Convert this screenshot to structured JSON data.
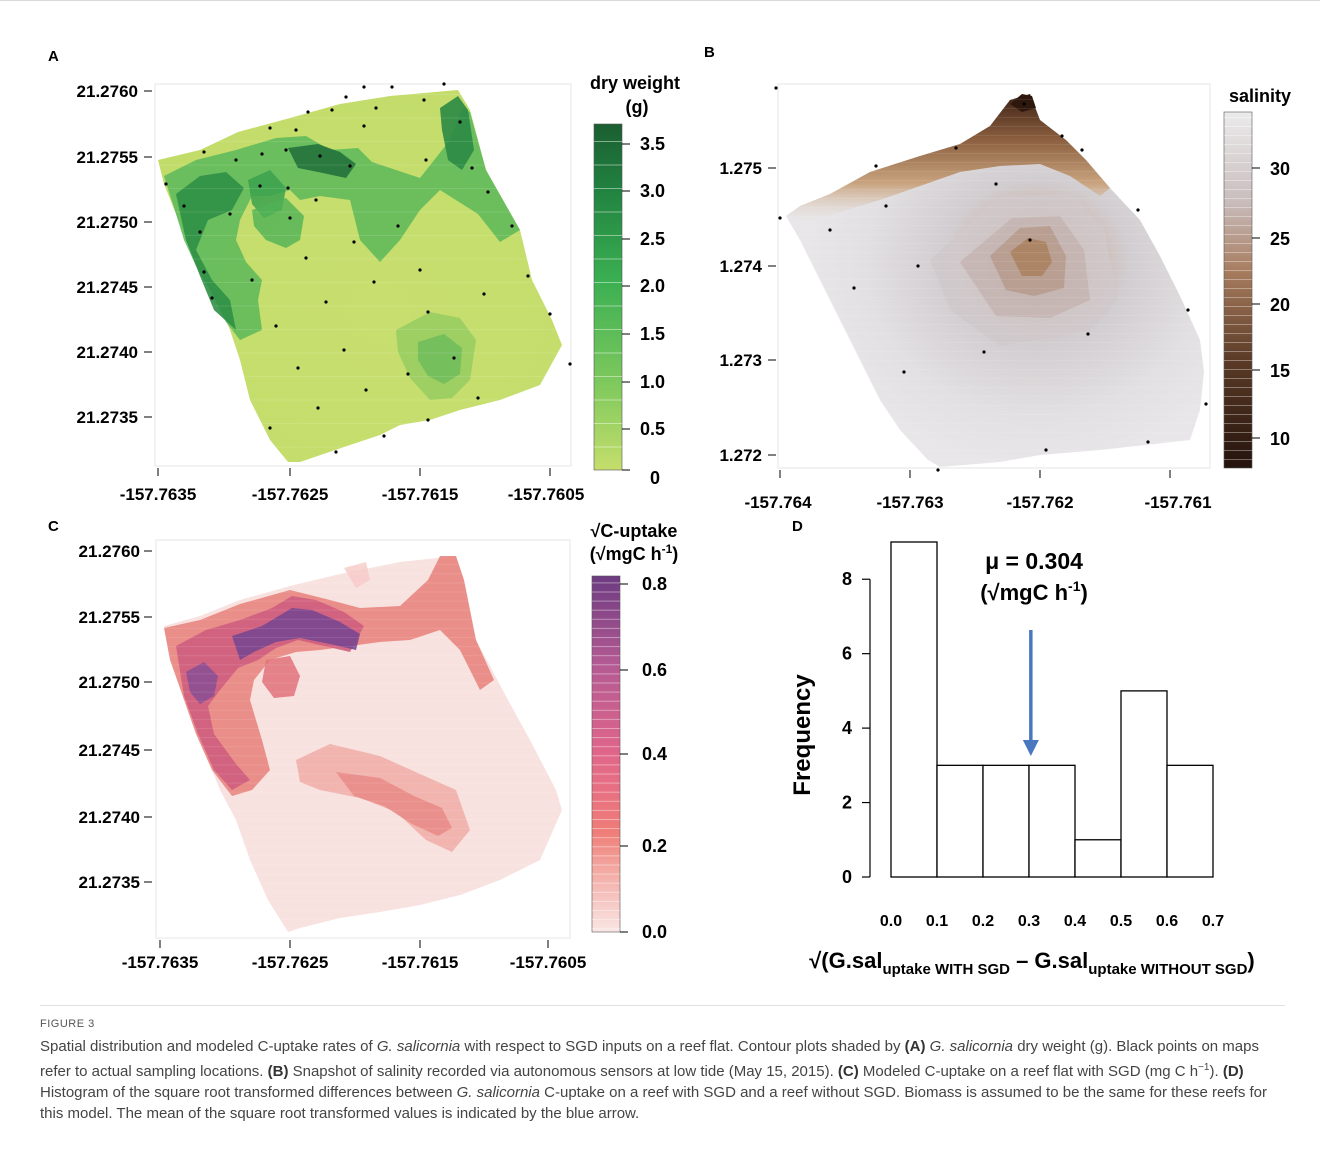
{
  "panels": {
    "A": {
      "letter": "A",
      "legend_title_1": "dry weight",
      "legend_title_2": "(g)",
      "legend_ticks": [
        "3.5",
        "3.0",
        "2.5",
        "2.0",
        "1.5",
        "1.0",
        "0.5",
        "0"
      ],
      "y_ticks": [
        "21.2760",
        "21.2755",
        "21.2750",
        "21.2745",
        "21.2740",
        "21.2735"
      ],
      "x_ticks": [
        "-157.7635",
        "-157.7625",
        "-157.7615",
        "-157.7605"
      ],
      "colors": {
        "low": "#c5de6c",
        "high": "#1d6b35"
      }
    },
    "B": {
      "letter": "B",
      "legend_title": "salinity",
      "legend_ticks": [
        "30",
        "25",
        "20",
        "15",
        "10"
      ],
      "y_ticks": [
        "1.275",
        "1.274",
        "1.273",
        "1.272"
      ],
      "x_ticks": [
        "-157.764",
        "-157.763",
        "-157.762",
        "-157.761"
      ],
      "colors": {
        "low": "#e6e4e6",
        "high": "#2b160e"
      }
    },
    "C": {
      "letter": "C",
      "legend_title_1": "√C-uptake",
      "legend_title_2": "(√mgC h",
      "legend_title_sup": "-1",
      "legend_title_end": ")",
      "legend_ticks": [
        "0.8",
        "0.6",
        "0.4",
        "0.2",
        "0.0"
      ],
      "y_ticks": [
        "21.2760",
        "21.2755",
        "21.2750",
        "21.2745",
        "21.2740",
        "21.2735"
      ],
      "x_ticks": [
        "-157.7635",
        "-157.7625",
        "-157.7615",
        "-157.7605"
      ],
      "colors": {
        "low": "#f8e4e2",
        "high": "#5a2e73"
      }
    },
    "D": {
      "letter": "D",
      "mean_label": "μ  = 0.304",
      "mean_unit_1": "(√mgC h",
      "mean_unit_sup": "-1",
      "mean_unit_end": ")",
      "ylabel": "Frequency",
      "xlabel_pre": "√(G.sal",
      "xlabel_sub1": "uptake WITH SGD",
      "xlabel_mid": " – G.sal",
      "xlabel_sub2": "uptake WITHOUT SGD",
      "xlabel_end": ")",
      "arrow_color": "#4a78c0"
    }
  },
  "chart_data": {
    "type": "bar",
    "bin_edges": [
      0.0,
      0.1,
      0.2,
      0.3,
      0.4,
      0.5,
      0.6,
      0.7
    ],
    "categories": [
      "0.0-0.1",
      "0.1-0.2",
      "0.2-0.3",
      "0.3-0.4",
      "0.4-0.5",
      "0.5-0.6",
      "0.6-0.7"
    ],
    "values": [
      9,
      3,
      3,
      3,
      1,
      5,
      3
    ],
    "x_ticks": [
      "0.0",
      "0.1",
      "0.2",
      "0.3",
      "0.4",
      "0.5",
      "0.6",
      "0.7"
    ],
    "y_ticks": [
      "0",
      "2",
      "4",
      "6",
      "8"
    ],
    "xlim": [
      0,
      0.7
    ],
    "ylim": [
      0,
      9
    ],
    "mean": 0.304,
    "ylabel": "Frequency"
  },
  "caption": {
    "label": "FIGURE 3",
    "t1": "Spatial distribution and modeled C-uptake rates of ",
    "sp1": "G. salicornia",
    "t2": " with respect to SGD inputs on a reef flat. Contour plots shaded by ",
    "la": "(A)",
    "t3": " ",
    "sp2": "G. salicornia",
    "t4": " dry weight (g). Black points on maps refer to actual sampling locations. ",
    "lb": "(B)",
    "t5": " Snapshot of salinity recorded via autonomous sensors at low tide (May 15, 2015). ",
    "lc": "(C)",
    "t6": " Modeled C-uptake on a reef flat with SGD (mg C h",
    "t6sup": "−1",
    "t7": "). ",
    "ld": "(D)",
    "t8": " Histogram of the square root transformed differences between ",
    "sp3": "G. salicornia",
    "t9": " C-uptake on a reef with SGD and a reef without SGD. Biomass is assumed to be the same for these reefs for this model. The mean of the square root transformed values is indicated by the blue arrow."
  }
}
